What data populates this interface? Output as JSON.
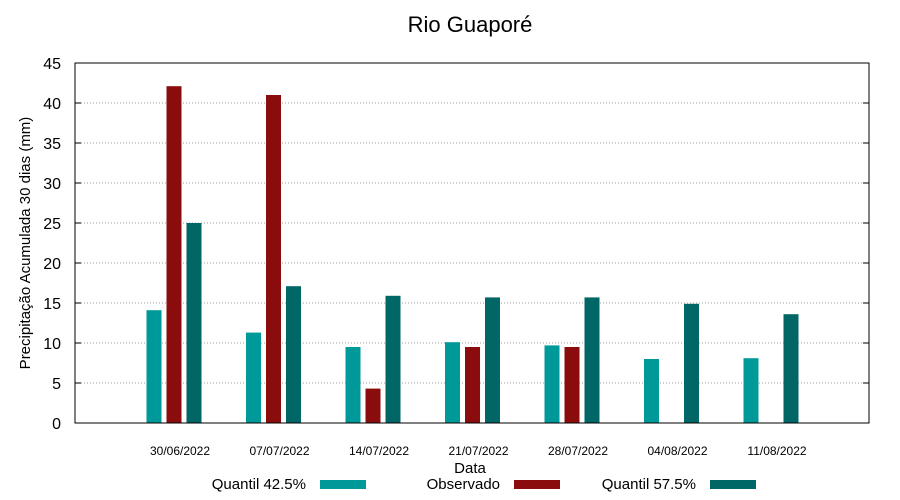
{
  "chart_data": {
    "type": "bar",
    "title": "Rio Guaporé",
    "xlabel": "Data",
    "ylabel": "Precipitação Acumulada 30 dias (mm)",
    "ylim": [
      0,
      45
    ],
    "yticks": [
      0,
      5,
      10,
      15,
      20,
      25,
      30,
      35,
      40,
      45
    ],
    "grid": "horizontal dotted",
    "legend_position": "bottom",
    "categories": [
      "30/06/2022",
      "07/07/2022",
      "14/07/2022",
      "21/07/2022",
      "28/07/2022",
      "04/08/2022",
      "11/08/2022"
    ],
    "series": [
      {
        "name": "Quantil 42.5%",
        "color": "#009999",
        "values": [
          14.1,
          11.3,
          9.5,
          10.1,
          9.7,
          8.0,
          8.1
        ]
      },
      {
        "name": "Observado",
        "color": "#8b0c0c",
        "values": [
          42.1,
          41.0,
          4.3,
          9.5,
          9.5,
          null,
          null
        ]
      },
      {
        "name": "Quantil 57.5%",
        "color": "#006666",
        "values": [
          25.0,
          17.1,
          15.9,
          15.7,
          15.7,
          14.9,
          13.6
        ]
      }
    ]
  }
}
